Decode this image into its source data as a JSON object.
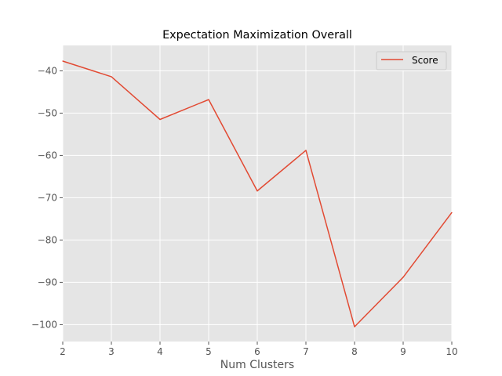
{
  "chart_data": {
    "type": "line",
    "title": "Expectation Maximization Overall",
    "xlabel": "Num Clusters",
    "ylabel": "",
    "x": [
      2,
      3,
      4,
      5,
      6,
      7,
      8,
      9,
      10
    ],
    "xlim": [
      2,
      10
    ],
    "ylim": [
      -104,
      -34
    ],
    "x_ticks": [
      2,
      3,
      4,
      5,
      6,
      7,
      8,
      9,
      10
    ],
    "y_ticks": [
      -40,
      -50,
      -60,
      -70,
      -80,
      -90,
      -100
    ],
    "grid": true,
    "legend_position": "top-right",
    "series": [
      {
        "name": "Score",
        "color": "#e24a33",
        "values": [
          -37.7,
          -41.4,
          -51.5,
          -46.8,
          -68.4,
          -58.8,
          -100.5,
          -88.8,
          -73.5
        ]
      }
    ]
  },
  "style": {
    "plot_background": "#e5e5e5",
    "grid_color": "#ffffff",
    "tick_color": "#555555"
  }
}
